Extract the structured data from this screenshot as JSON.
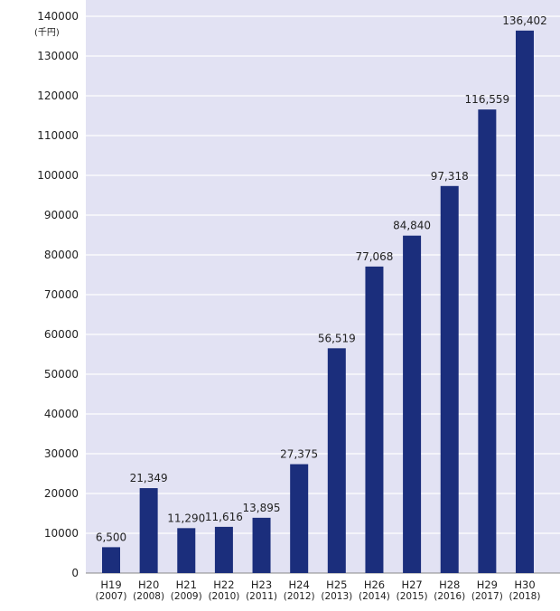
{
  "chart_data": {
    "type": "bar",
    "unit_label": "(千円)",
    "ylim": [
      0,
      140000
    ],
    "yticks": [
      "0",
      "10000",
      "20000",
      "30000",
      "40000",
      "50000",
      "60000",
      "70000",
      "80000",
      "90000",
      "100000",
      "110000",
      "120000",
      "130000",
      "140000"
    ],
    "grid": true,
    "categories": [
      "H19",
      "H20",
      "H21",
      "H22",
      "H23",
      "H24",
      "H25",
      "H26",
      "H27",
      "H28",
      "H29",
      "H30"
    ],
    "category_years": [
      "(2007)",
      "(2008)",
      "(2009)",
      "(2010)",
      "(2011)",
      "(2012)",
      "(2013)",
      "(2014)",
      "(2015)",
      "(2016)",
      "(2017)",
      "(2018)"
    ],
    "values": [
      6500,
      21349,
      11290,
      11616,
      13895,
      27375,
      56519,
      77068,
      84840,
      97318,
      116559,
      136402
    ],
    "value_labels": [
      "6,500",
      "21,349",
      "11,290",
      "11,616",
      "13,895",
      "27,375",
      "56,519",
      "77,068",
      "84,840",
      "97,318",
      "116,559",
      "136,402"
    ],
    "colors": {
      "plot_bg": "#e2e2f3",
      "bar": "#1b2e7c",
      "grid": "#ffffff",
      "axis": "#888888"
    }
  }
}
